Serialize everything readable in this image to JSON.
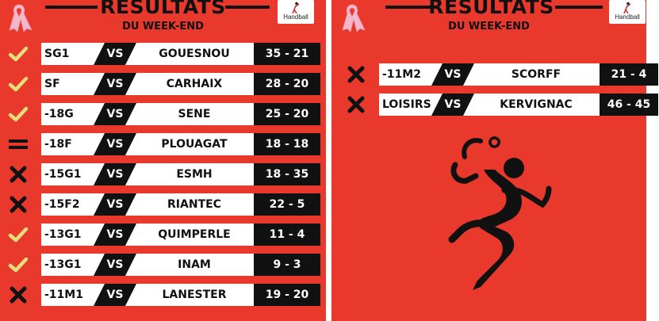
{
  "panels": [
    {
      "title": "RESULTATS",
      "subtitle": "DU WEEK-END",
      "logo_text": "Handball",
      "results": [
        {
          "status": "win",
          "category": "SG1",
          "vs": "VS",
          "opponent": "GOUESNOU",
          "score": "35 - 21"
        },
        {
          "status": "win",
          "category": "SF",
          "vs": "VS",
          "opponent": "CARHAIX",
          "score": "28 - 20"
        },
        {
          "status": "win",
          "category": "-18G",
          "vs": "VS",
          "opponent": "SENE",
          "score": "25 - 20"
        },
        {
          "status": "draw",
          "category": "-18F",
          "vs": "VS",
          "opponent": "PLOUAGAT",
          "score": "18 - 18"
        },
        {
          "status": "loss",
          "category": "-15G1",
          "vs": "VS",
          "opponent": "ESMH",
          "score": "18 - 35"
        },
        {
          "status": "loss",
          "category": "-15F2",
          "vs": "VS",
          "opponent": "RIANTEC",
          "score": "22 - 5"
        },
        {
          "status": "win",
          "category": "-13G1",
          "vs": "VS",
          "opponent": "QUIMPERLE",
          "score": "11 - 4"
        },
        {
          "status": "win",
          "category": "-13G1",
          "vs": "VS",
          "opponent": "INAM",
          "score": "9 - 3"
        },
        {
          "status": "loss",
          "category": "-11M1",
          "vs": "VS",
          "opponent": "LANESTER",
          "score": "19 - 20"
        }
      ]
    },
    {
      "title": "RESULTATS",
      "subtitle": "DU WEEK-END",
      "logo_text": "Handball",
      "results": [
        {
          "status": "loss",
          "category": "-11M2",
          "vs": "VS",
          "opponent": "SCORFF",
          "score": "21 - 4"
        },
        {
          "status": "loss",
          "category": "LOISIRS",
          "vs": "VS",
          "opponent": "KERVIGNAC",
          "score": "46 - 45"
        }
      ]
    }
  ],
  "icons": {
    "win": "check-icon",
    "loss": "cross-icon",
    "draw": "equals-icon",
    "ribbon": "pink-ribbon-icon",
    "player": "handball-player-icon"
  },
  "colors": {
    "background": "#e8392c",
    "bar": "#ffffff",
    "dark": "#111111",
    "check": "#e3e07a",
    "ribbon": "#f4b6c8"
  }
}
